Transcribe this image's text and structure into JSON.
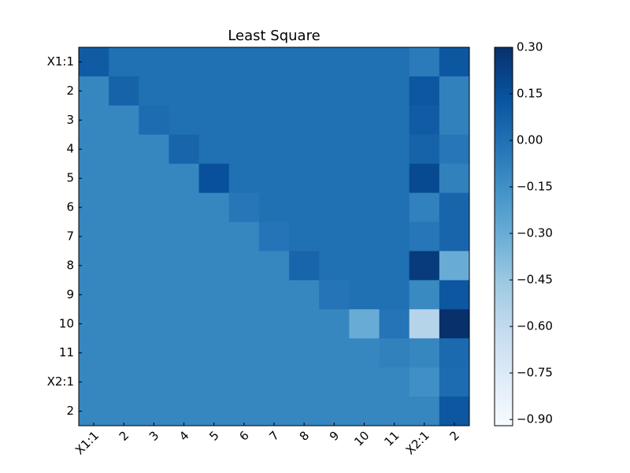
{
  "chart_data": {
    "type": "heatmap",
    "title": "Least Square",
    "categories": [
      "X1:1",
      "2",
      "3",
      "4",
      "5",
      "6",
      "7",
      "8",
      "9",
      "10",
      "11",
      "X2:1",
      "2"
    ],
    "values": [
      [
        0.1,
        0.0,
        0.0,
        0.0,
        0.0,
        0.0,
        0.0,
        0.0,
        0.0,
        0.0,
        0.0,
        -0.05,
        0.12
      ],
      [
        -0.1,
        0.06,
        0.0,
        0.0,
        0.0,
        0.0,
        0.0,
        0.0,
        0.0,
        0.0,
        0.0,
        0.12,
        -0.08
      ],
      [
        -0.1,
        -0.1,
        0.02,
        0.0,
        0.0,
        0.0,
        0.0,
        0.0,
        0.0,
        0.0,
        0.0,
        0.1,
        -0.08
      ],
      [
        -0.1,
        -0.1,
        -0.1,
        0.05,
        0.0,
        0.0,
        0.0,
        0.0,
        0.0,
        0.0,
        0.0,
        0.06,
        -0.03
      ],
      [
        -0.1,
        -0.1,
        -0.1,
        -0.1,
        0.15,
        0.0,
        0.0,
        0.0,
        0.0,
        0.0,
        0.0,
        0.18,
        -0.08
      ],
      [
        -0.1,
        -0.1,
        -0.1,
        -0.1,
        -0.1,
        -0.03,
        0.0,
        0.0,
        0.0,
        0.0,
        0.0,
        -0.08,
        0.05
      ],
      [
        -0.1,
        -0.1,
        -0.1,
        -0.1,
        -0.1,
        -0.1,
        -0.02,
        0.0,
        0.0,
        0.0,
        0.0,
        -0.03,
        0.05
      ],
      [
        -0.1,
        -0.1,
        -0.1,
        -0.1,
        -0.1,
        -0.1,
        -0.1,
        0.05,
        0.0,
        0.0,
        0.0,
        0.25,
        -0.3
      ],
      [
        -0.1,
        -0.1,
        -0.1,
        -0.1,
        -0.1,
        -0.1,
        -0.1,
        -0.1,
        -0.02,
        0.0,
        0.0,
        -0.12,
        0.12
      ],
      [
        -0.1,
        -0.1,
        -0.1,
        -0.1,
        -0.1,
        -0.1,
        -0.1,
        -0.1,
        -0.1,
        -0.3,
        -0.02,
        -0.55,
        0.3
      ],
      [
        -0.1,
        -0.1,
        -0.1,
        -0.1,
        -0.1,
        -0.1,
        -0.1,
        -0.1,
        -0.1,
        -0.1,
        -0.08,
        -0.1,
        0.03
      ],
      [
        -0.1,
        -0.1,
        -0.1,
        -0.1,
        -0.1,
        -0.1,
        -0.1,
        -0.1,
        -0.1,
        -0.1,
        -0.1,
        -0.15,
        0.02
      ],
      [
        -0.1,
        -0.1,
        -0.1,
        -0.1,
        -0.1,
        -0.1,
        -0.1,
        -0.1,
        -0.1,
        -0.1,
        -0.1,
        -0.1,
        0.12
      ]
    ],
    "colormap": [
      "#f7fbff",
      "#deebf7",
      "#c6dbef",
      "#9ecae1",
      "#6baed6",
      "#4292c6",
      "#2171b5",
      "#08519c",
      "#08306b"
    ],
    "zlim": [
      -0.92,
      0.3
    ],
    "zticks": [
      {
        "value": 0.3,
        "label": "0.30"
      },
      0.15,
      {
        "value": 0,
        "label": "0.00"
      },
      {
        "value": -0.15,
        "label": "−0.15"
      },
      {
        "value": -0.3,
        "label": "−0.30"
      },
      {
        "value": -0.45,
        "label": "−0.45"
      },
      {
        "value": -0.6,
        "label": "−0.60"
      },
      {
        "value": -0.75,
        "label": "−0.75"
      },
      {
        "value": -0.9,
        "label": "−0.90"
      }
    ]
  }
}
